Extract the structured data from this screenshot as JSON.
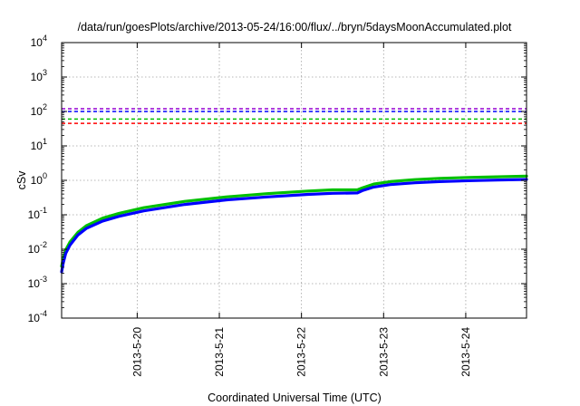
{
  "chart_data": {
    "type": "line",
    "title": "/data/run/goesPlots/archive/2013-05-24/16:00/flux/../bryn/5daysMoonAccumulated.plot",
    "xlabel": "Coordinated Universal Time (UTC)",
    "ylabel": "cSv",
    "y_scale": "log",
    "ylim": [
      0.0001,
      10000
    ],
    "xlim": [
      0,
      5.66
    ],
    "grid": true,
    "y_ticks": [
      {
        "value": 0.0001,
        "base": "10",
        "exp": "-4"
      },
      {
        "value": 0.001,
        "base": "10",
        "exp": "-3"
      },
      {
        "value": 0.01,
        "base": "10",
        "exp": "-2"
      },
      {
        "value": 0.1,
        "base": "10",
        "exp": "-1"
      },
      {
        "value": 1,
        "base": "10",
        "exp": "0"
      },
      {
        "value": 10,
        "base": "10",
        "exp": "1"
      },
      {
        "value": 100,
        "base": "10",
        "exp": "2"
      },
      {
        "value": 1000,
        "base": "10",
        "exp": "3"
      },
      {
        "value": 10000,
        "base": "10",
        "exp": "4"
      }
    ],
    "x_ticks": [
      {
        "value": 0.92,
        "label": "2013-5-20"
      },
      {
        "value": 1.92,
        "label": "2013-5-21"
      },
      {
        "value": 2.92,
        "label": "2013-5-22"
      },
      {
        "value": 3.92,
        "label": "2013-5-23"
      },
      {
        "value": 4.92,
        "label": "2013-5-24"
      }
    ],
    "threshold_lines": [
      {
        "y": 120,
        "color": "#9400d3"
      },
      {
        "y": 100,
        "color": "#0000ff"
      },
      {
        "y": 60,
        "color": "#00c000"
      },
      {
        "y": 45,
        "color": "#ff0000"
      }
    ],
    "series": [
      {
        "color": "#00c000",
        "x": [
          0,
          0.02,
          0.05,
          0.1,
          0.2,
          0.3,
          0.5,
          0.7,
          1.0,
          1.5,
          2.0,
          2.5,
          3.0,
          3.3,
          3.6,
          3.66,
          3.8,
          4.0,
          4.3,
          4.6,
          5.0,
          5.3,
          5.66
        ],
        "y": [
          0.0032,
          0.0055,
          0.0095,
          0.016,
          0.031,
          0.048,
          0.08,
          0.11,
          0.16,
          0.245,
          0.33,
          0.41,
          0.49,
          0.53,
          0.53,
          0.6,
          0.78,
          0.92,
          1.05,
          1.14,
          1.22,
          1.27,
          1.33
        ]
      },
      {
        "color": "#0000ff",
        "x": [
          0,
          0.02,
          0.05,
          0.1,
          0.2,
          0.3,
          0.5,
          0.7,
          1.0,
          1.5,
          2.0,
          2.5,
          3.0,
          3.3,
          3.6,
          3.66,
          3.8,
          4.0,
          4.3,
          4.6,
          5.0,
          5.3,
          5.66
        ],
        "y": [
          0.0022,
          0.004,
          0.0075,
          0.013,
          0.026,
          0.04,
          0.066,
          0.09,
          0.13,
          0.2,
          0.27,
          0.33,
          0.39,
          0.42,
          0.43,
          0.5,
          0.64,
          0.75,
          0.85,
          0.92,
          0.98,
          1.02,
          1.06
        ]
      }
    ]
  }
}
